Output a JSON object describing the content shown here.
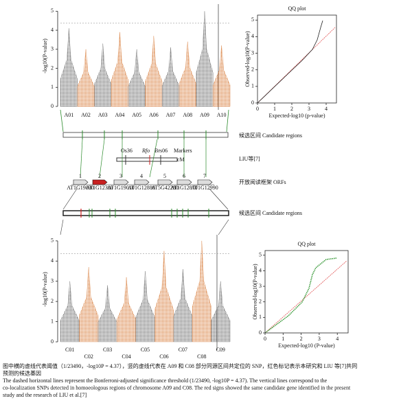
{
  "top_manhattan": {
    "y_label": "-log10(P-value)",
    "ylim": [
      0,
      5.3
    ],
    "yticks": [
      0,
      1,
      2,
      3,
      4,
      5
    ],
    "threshold": 4.37,
    "chromosomes": [
      "A01",
      "A02",
      "A03",
      "A04",
      "A05",
      "A06",
      "A07",
      "A08",
      "A09",
      "A10"
    ],
    "peaks": [
      4.1,
      3.0,
      3.3,
      3.9,
      3.0,
      3.7,
      3.1,
      3.4,
      5.0,
      3.2
    ],
    "colors": [
      "#555555",
      "#d2691e"
    ]
  },
  "top_qq": {
    "title": "QQ plot",
    "x_label": "Expected-log10 (p-value)",
    "y_label": "Observed-log10(P-value)",
    "xlim": [
      0,
      4.6
    ],
    "xticks": [
      0,
      1,
      2,
      3,
      4
    ],
    "ylim": [
      0,
      5.3
    ],
    "yticks": [
      0,
      1,
      2,
      3,
      4,
      5
    ]
  },
  "diagram": {
    "candidate_label": "候选区间 Candidate regions",
    "liu_label": "LIU等[7]",
    "markers": [
      "Os36",
      "Rfo",
      "Brs06"
    ],
    "markers_label": "Markers",
    "cm_label": "cM",
    "orf_label": "开放阅读框架 ORFs",
    "orfs": [
      {
        "number": "1",
        "id": "AT1G19030"
      },
      {
        "number": "2",
        "id": "AT1G12300"
      },
      {
        "number": "3",
        "id": "AT1G19010"
      },
      {
        "number": "4",
        "id": "AT1G12880"
      },
      {
        "number": "5",
        "id": "AT5G42280"
      },
      {
        "number": "6",
        "id": "AT1G12870"
      },
      {
        "number": "7",
        "id": "AT1G12990"
      }
    ],
    "candidate_label_2": "候选区间 Candidate regions"
  },
  "bottom_manhattan": {
    "y_label": "-log10(P-value)",
    "ylim": [
      0,
      5.2
    ],
    "yticks": [
      0,
      1,
      2,
      3,
      4,
      5
    ],
    "threshold": 4.37,
    "chromosomes": [
      "C01",
      "C02",
      "C03",
      "C04",
      "C05",
      "C06",
      "C07",
      "C08",
      "C09"
    ],
    "peaks": [
      3.0,
      3.7,
      2.8,
      3.2,
      3.5,
      4.5,
      3.6,
      5.0,
      3.0
    ],
    "colors": [
      "#555555",
      "#d2691e"
    ]
  },
  "bottom_qq": {
    "title": "QQ plot",
    "x_label": "Expected-log10 (P-value)",
    "y_label": "Observed-log10(P-value)",
    "xlim": [
      0,
      4.6
    ],
    "xticks": [
      0,
      1,
      2,
      3,
      4
    ],
    "ylim": [
      0,
      5.3
    ],
    "yticks": [
      0,
      1,
      2,
      3,
      4,
      5
    ]
  },
  "caption": {
    "lines": [
      "图中横的虚线代表阈值（1/23490，-log10P = 4.37），竖的虚线代表在 A09 和 C08 部分同源区间共定位的 SNP，红色标记表示本研究和 LIU 等[7]共同",
      "预测的候选基因",
      "The dashed horizontal lines represent the Bonferroni-adjusted significance threshold (1/23490, -log10P = 4.37). The vertical lines correspond to the",
      "co-localization SNPs detected in homoeologous regions of chromosome A09 and C08. The red signs showed the same candidate gene identified in the present",
      "study and the research of LIU et al.[7]"
    ]
  }
}
